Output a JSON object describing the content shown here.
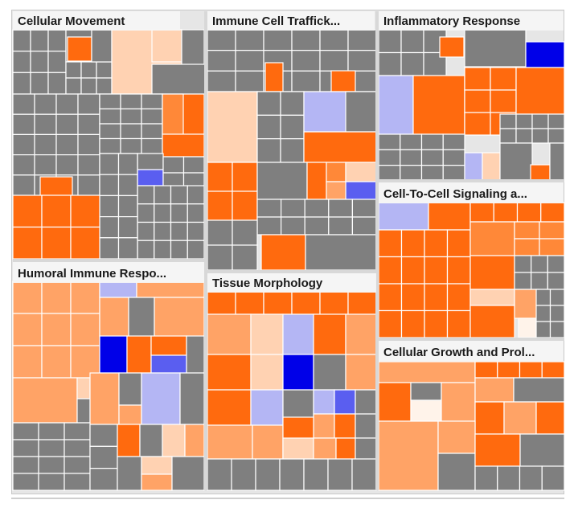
{
  "colors": {
    "gray": "#7f7f7f",
    "orange_strong": "#ff6a0e",
    "orange_mid": "#ff8838",
    "orange_soft": "#ffa366",
    "orange_pale": "#ffd2b2",
    "cream": "#fff3ea",
    "blue_light": "#b4b6f4",
    "blue_mid": "#5a5ef0",
    "blue_strong": "#0000e8",
    "header_bg": "#f6f6f6",
    "background": "#e6e6e6"
  },
  "chart_data": {
    "type": "treemap",
    "title": "",
    "groups": [
      {
        "label": "Cellular Movement"
      },
      {
        "label": "Immune Cell Traffick..."
      },
      {
        "label": "Inflammatory Response"
      },
      {
        "label": "Cell-To-Cell Signaling a..."
      },
      {
        "label": "Humoral Immune Respo..."
      },
      {
        "label": "Tissue Morphology"
      },
      {
        "label": "Cellular Growth and Prol..."
      }
    ]
  }
}
